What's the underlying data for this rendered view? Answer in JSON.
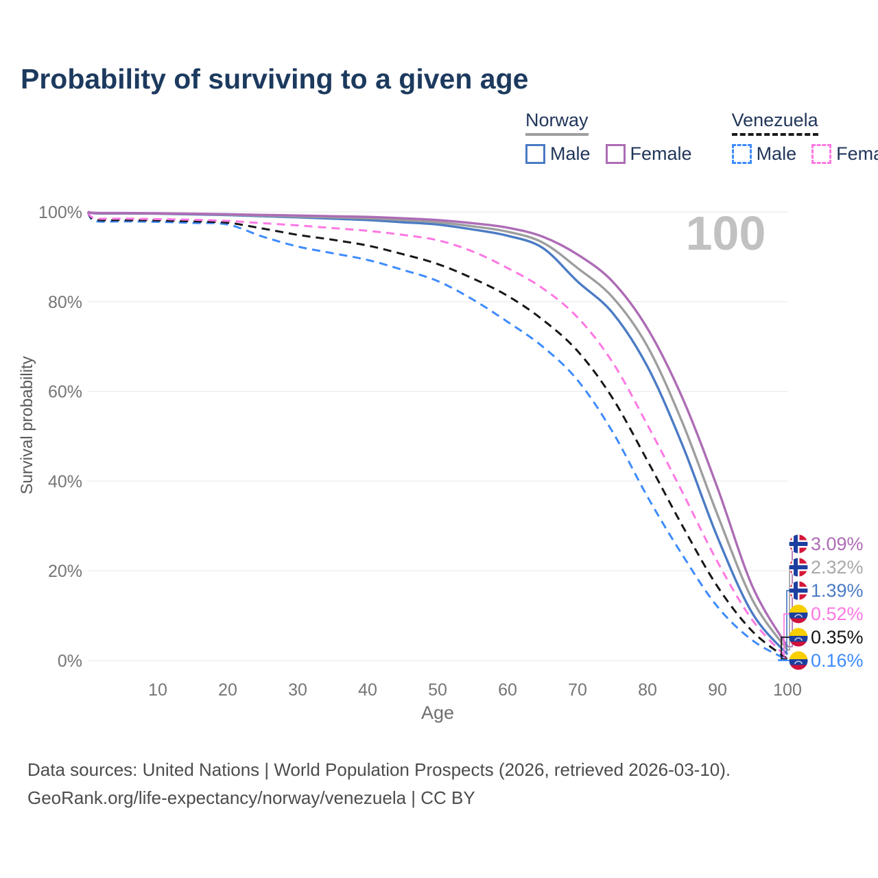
{
  "title": "Probability of surviving to a given age",
  "watermark": "100",
  "legend": {
    "groups": [
      {
        "label": "Norway",
        "style": "solid",
        "color": "#9e9e9e",
        "items": [
          {
            "label": "Male",
            "color": "#4b7bc4",
            "style": "solid"
          },
          {
            "label": "Female",
            "color": "#ad6cb5",
            "style": "solid"
          }
        ]
      },
      {
        "label": "Venezuela",
        "style": "dashed",
        "color": "#1a1a1a",
        "items": [
          {
            "label": "Male",
            "color": "#3e8bfd",
            "style": "dashed"
          },
          {
            "label": "Female",
            "color": "#fd78e3",
            "style": "dashed"
          }
        ]
      }
    ]
  },
  "chart_data": {
    "type": "line",
    "title": "Probability of surviving to a given age",
    "xlabel": "Age",
    "ylabel": "Survival probability",
    "xlim": [
      0,
      100
    ],
    "ylim": [
      0,
      100
    ],
    "grid": true,
    "legend_position": "top-right",
    "x_ticks": [
      10,
      20,
      30,
      40,
      50,
      60,
      70,
      80,
      90,
      100
    ],
    "y_ticks": [
      0,
      20,
      40,
      60,
      80,
      100
    ],
    "y_tick_suffix": "%",
    "x": [
      0,
      1,
      5,
      10,
      15,
      20,
      25,
      30,
      35,
      40,
      45,
      50,
      55,
      60,
      65,
      70,
      75,
      80,
      85,
      90,
      95,
      100
    ],
    "series": [
      {
        "name": "Norway Female",
        "country": "Norway",
        "sex": "Female",
        "flag": "norway",
        "color": "#ad6cb5",
        "label_color": "#ad6cb5",
        "dash": "solid",
        "end_label": "3.09%",
        "values": [
          100,
          99.8,
          99.75,
          99.7,
          99.6,
          99.5,
          99.35,
          99.2,
          99.05,
          98.9,
          98.6,
          98.2,
          97.5,
          96.5,
          94.5,
          90.5,
          84.5,
          74,
          58.5,
          38.5,
          16.5,
          3.09
        ]
      },
      {
        "name": "Norway Both sexes",
        "country": "Norway",
        "sex": "Both",
        "flag": "norway",
        "color": "#9e9e9e",
        "label_color": "#a8a8a8",
        "dash": "solid",
        "end_label": "2.32%",
        "values": [
          100,
          99.75,
          99.7,
          99.65,
          99.55,
          99.4,
          99.2,
          99.0,
          98.8,
          98.6,
          98.2,
          97.7,
          96.8,
          95.6,
          93.2,
          87.5,
          81,
          70,
          53,
          32.5,
          13.5,
          2.32
        ]
      },
      {
        "name": "Norway Male",
        "country": "Norway",
        "sex": "Male",
        "flag": "norway",
        "color": "#4b7bc4",
        "label_color": "#4b7bc4",
        "dash": "solid",
        "end_label": "1.39%",
        "values": [
          100,
          99.7,
          99.65,
          99.6,
          99.45,
          99.3,
          99.05,
          98.8,
          98.5,
          98.2,
          97.7,
          97.2,
          96.1,
          94.7,
          92.0,
          84.5,
          77.5,
          65.5,
          48,
          27.5,
          10.5,
          1.39
        ]
      },
      {
        "name": "Venezuela Female",
        "country": "Venezuela",
        "sex": "Female",
        "flag": "venezuela",
        "color": "#fd78e3",
        "label_color": "#fd78e3",
        "dash": "dashed",
        "end_label": "0.52%",
        "values": [
          100,
          98.6,
          98.5,
          98.4,
          98.25,
          98.0,
          97.5,
          97.0,
          96.4,
          95.8,
          94.9,
          93.7,
          91.2,
          87.5,
          83,
          76.5,
          66.5,
          52.5,
          37.5,
          22,
          9,
          0.52
        ]
      },
      {
        "name": "Venezuela Both sexes",
        "country": "Venezuela",
        "sex": "Both",
        "flag": "venezuela",
        "color": "#161616",
        "label_color": "#161616",
        "dash": "dashed",
        "end_label": "0.35%",
        "values": [
          100,
          98.3,
          98.2,
          98.1,
          97.9,
          97.6,
          96.3,
          94.9,
          93.8,
          92.5,
          90.6,
          88.4,
          85.2,
          81.3,
          76,
          69,
          58.5,
          44.5,
          30,
          16.5,
          6.5,
          0.35
        ]
      },
      {
        "name": "Venezuela Male",
        "country": "Venezuela",
        "sex": "Male",
        "flag": "venezuela",
        "color": "#3e8bfd",
        "label_color": "#3e8bfd",
        "dash": "dashed",
        "end_label": "0.16%",
        "values": [
          100,
          98.0,
          97.9,
          97.8,
          97.55,
          97.2,
          94.5,
          92.3,
          90.8,
          89.3,
          87.1,
          84.6,
          80.5,
          75.5,
          70,
          62.5,
          51,
          36.5,
          23.5,
          12,
          4.5,
          0.16
        ]
      }
    ]
  },
  "footer": {
    "line1": "Data sources: United Nations | World Population Prospects (2026, retrieved 2026-03-10).",
    "line2": "GeoRank.org/life-expectancy/norway/venezuela | CC BY"
  }
}
